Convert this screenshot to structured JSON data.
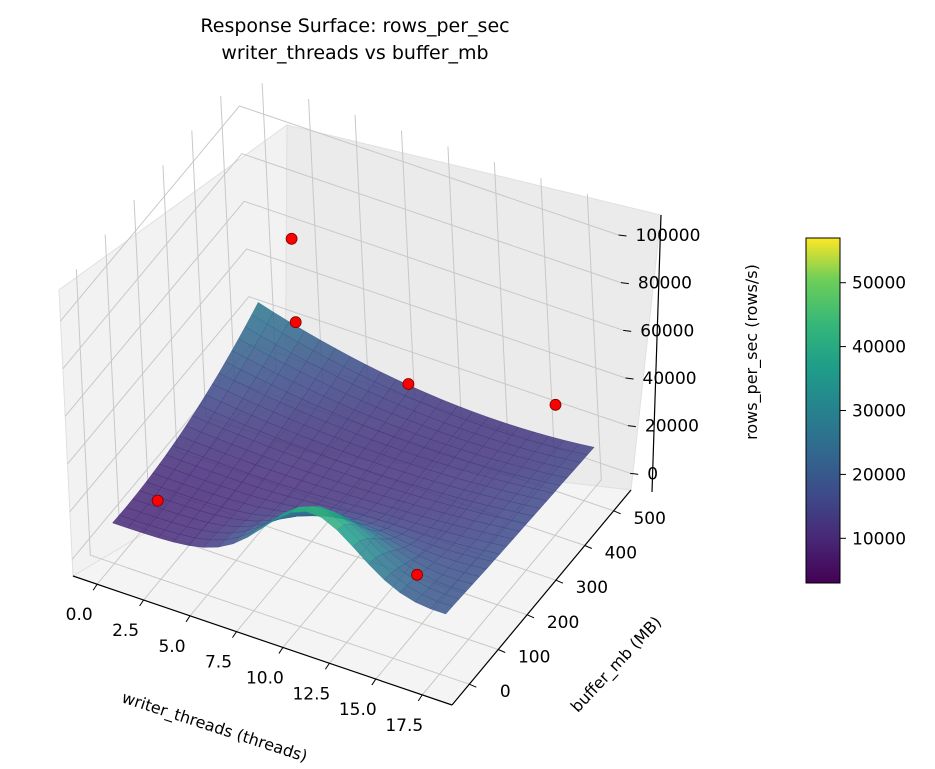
{
  "chart_data": {
    "type": "surface3d",
    "title": "Response Surface: rows_per_sec",
    "subtitle": "writer_threads vs buffer_mb",
    "xlabel": "writer_threads (threads)",
    "ylabel": "buffer_mb (MB)",
    "zlabel": "rows_per_sec (rows/s)",
    "x_ticks": [
      "0.0",
      "2.5",
      "5.0",
      "7.5",
      "10.0",
      "12.5",
      "15.0",
      "17.5"
    ],
    "y_ticks": [
      "0",
      "100",
      "200",
      "300",
      "400",
      "500"
    ],
    "z_ticks": [
      "0",
      "20000",
      "40000",
      "60000",
      "80000",
      "100000"
    ],
    "colorbar_ticks": [
      "10000",
      "20000",
      "30000",
      "40000",
      "50000"
    ],
    "colorbar_range": [
      3000,
      57000
    ],
    "colormap": "viridis",
    "scatter_points": [
      {
        "x": 2,
        "y": 32,
        "z": 20000
      },
      {
        "x": 16,
        "y": 32,
        "z": 26000
      },
      {
        "x": 2,
        "y": 512,
        "z": 60000
      },
      {
        "x": 16,
        "y": 512,
        "z": 27500
      },
      {
        "x": 8,
        "y": 512,
        "z": 15000
      },
      {
        "x": 2,
        "y": 512,
        "z": 25000
      }
    ],
    "point_color": "#ff0000"
  }
}
